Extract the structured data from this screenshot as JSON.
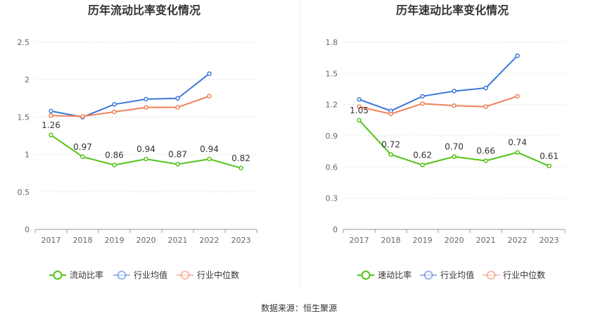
{
  "source_note": "数据来源：恒生聚源",
  "chart_data": [
    {
      "type": "line",
      "title": "历年流动比率变化情况",
      "categories": [
        "2017",
        "2018",
        "2019",
        "2020",
        "2021",
        "2022",
        "2023"
      ],
      "ylim": [
        0,
        2.5
      ],
      "yticks": [
        "0",
        "0.5",
        "1",
        "1.5",
        "2",
        "2.5"
      ],
      "ytick_values": [
        0,
        0.5,
        1,
        1.5,
        2,
        2.5
      ],
      "grid": true,
      "legend_position": "bottom",
      "series": [
        {
          "name": "流动比率",
          "color": "#52c41a",
          "values": [
            1.26,
            0.97,
            0.86,
            0.94,
            0.87,
            0.94,
            0.82
          ],
          "labels": [
            "1.26",
            "0.97",
            "0.86",
            "0.94",
            "0.87",
            "0.94",
            "0.82"
          ]
        },
        {
          "name": "行业均值",
          "color": "#3c78d8",
          "values": [
            1.58,
            1.5,
            1.67,
            1.74,
            1.75,
            2.08,
            null
          ]
        },
        {
          "name": "行业中位数",
          "color": "#f0825a",
          "values": [
            1.52,
            1.51,
            1.57,
            1.63,
            1.63,
            1.78,
            null
          ]
        }
      ]
    },
    {
      "type": "line",
      "title": "历年速动比率变化情况",
      "categories": [
        "2017",
        "2018",
        "2019",
        "2020",
        "2021",
        "2022",
        "2023"
      ],
      "ylim": [
        0,
        1.8
      ],
      "yticks": [
        "0",
        "0.3",
        "0.6",
        "0.9",
        "1.2",
        "1.5",
        "1.8"
      ],
      "ytick_values": [
        0,
        0.3,
        0.6,
        0.9,
        1.2,
        1.5,
        1.8
      ],
      "grid": true,
      "legend_position": "bottom",
      "series": [
        {
          "name": "速动比率",
          "color": "#52c41a",
          "values": [
            1.05,
            0.72,
            0.62,
            0.7,
            0.66,
            0.74,
            0.61
          ],
          "labels": [
            "1.05",
            "0.72",
            "0.62",
            "0.70",
            "0.66",
            "0.74",
            "0.61"
          ]
        },
        {
          "name": "行业均值",
          "color": "#3c78d8",
          "values": [
            1.25,
            1.14,
            1.28,
            1.33,
            1.36,
            1.67,
            null
          ]
        },
        {
          "name": "行业中位数",
          "color": "#f0825a",
          "values": [
            1.18,
            1.11,
            1.21,
            1.19,
            1.18,
            1.28,
            null
          ]
        }
      ]
    }
  ]
}
